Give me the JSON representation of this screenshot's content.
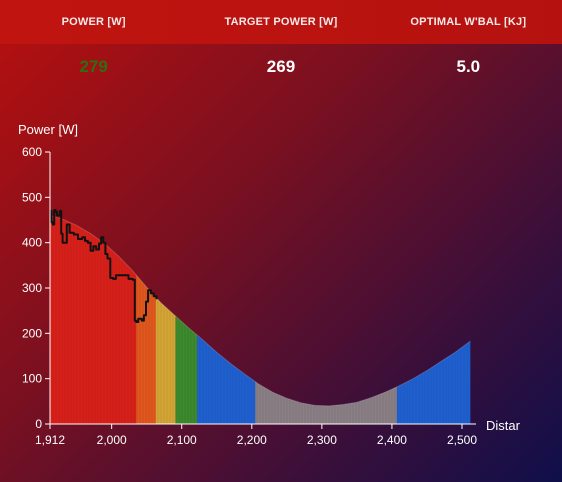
{
  "header": {
    "metrics": [
      {
        "label": "POWER [W]",
        "value": "279"
      },
      {
        "label": "TARGET POWER [W]",
        "value": "269"
      },
      {
        "label": "OPTIMAL W'BAL [KJ]",
        "value": "5.0"
      }
    ]
  },
  "chart_data": {
    "type": "area",
    "ylabel": "Power [W]",
    "xlabel": "Distar",
    "xlim": [
      1912,
      2512
    ],
    "ylim": [
      0,
      600
    ],
    "x_ticks": [
      {
        "value": 1912,
        "label": "1,912"
      },
      {
        "value": 2000,
        "label": "2,000"
      },
      {
        "value": 2100,
        "label": "2,100"
      },
      {
        "value": 2200,
        "label": "2,200"
      },
      {
        "value": 2300,
        "label": "2,300"
      },
      {
        "value": 2400,
        "label": "2,400"
      },
      {
        "value": 2500,
        "label": "2,500"
      }
    ],
    "y_ticks": [
      0,
      100,
      200,
      300,
      400,
      500,
      600
    ],
    "target_curve": {
      "x": [
        1912,
        1930,
        1950,
        1970,
        1990,
        2010,
        2030,
        2050,
        2070,
        2090,
        2110,
        2130,
        2150,
        2170,
        2190,
        2210,
        2230,
        2250,
        2270,
        2290,
        2310,
        2330,
        2350,
        2370,
        2390,
        2410,
        2430,
        2450,
        2470,
        2490,
        2512
      ],
      "y": [
        460,
        452,
        438,
        420,
        398,
        370,
        338,
        302,
        268,
        240,
        212,
        186,
        158,
        133,
        110,
        88,
        70,
        57,
        47,
        41,
        40,
        43,
        48,
        58,
        70,
        84,
        100,
        118,
        138,
        158,
        183
      ]
    },
    "zones": [
      {
        "x0": 1912,
        "x1": 2035,
        "color": "#d8201a"
      },
      {
        "x0": 2035,
        "x1": 2063,
        "color": "#e0581e"
      },
      {
        "x0": 2063,
        "x1": 2091,
        "color": "#d4a535"
      },
      {
        "x0": 2091,
        "x1": 2122,
        "color": "#3d8a2e"
      },
      {
        "x0": 2122,
        "x1": 2205,
        "color": "#1f5fd0"
      },
      {
        "x0": 2205,
        "x1": 2407,
        "color": "#8a7f85"
      },
      {
        "x0": 2407,
        "x1": 2512,
        "color": "#1f5fd0"
      }
    ],
    "power_trace": {
      "x": [
        1912,
        1914,
        1916,
        1918,
        1920,
        1922,
        1926,
        1928,
        1930,
        1936,
        1940,
        1946,
        1952,
        1958,
        1962,
        1966,
        1970,
        1974,
        1978,
        1982,
        1985,
        1988,
        1991,
        1994,
        1998,
        2002,
        2006,
        2010,
        2016,
        2024,
        2030,
        2033,
        2035,
        2038,
        2043,
        2046,
        2049,
        2052,
        2056,
        2060,
        2064
      ],
      "y": [
        470,
        445,
        440,
        472,
        468,
        460,
        470,
        420,
        400,
        440,
        422,
        418,
        408,
        412,
        404,
        400,
        382,
        392,
        385,
        398,
        412,
        400,
        375,
        365,
        322,
        320,
        328,
        328,
        328,
        320,
        318,
        228,
        225,
        232,
        228,
        240,
        270,
        295,
        288,
        282,
        275
      ]
    }
  }
}
